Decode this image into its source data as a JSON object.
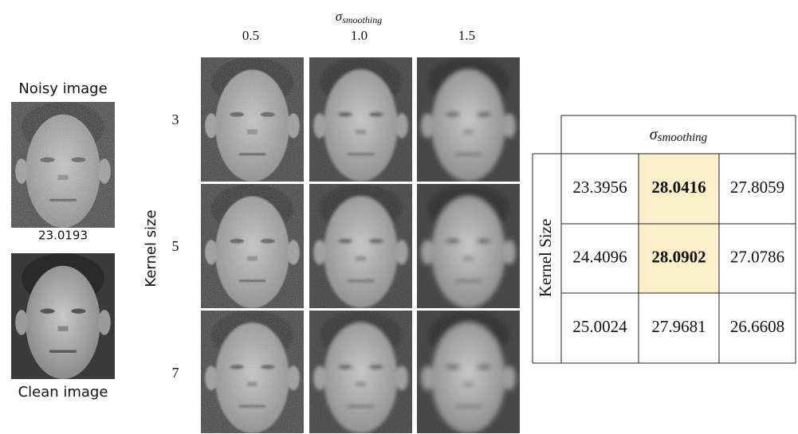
{
  "figure": {
    "noisy": {
      "label": "Noisy image",
      "psnr": "23.0193"
    },
    "clean": {
      "label": "Clean image"
    },
    "grid": {
      "col_axis": {
        "symbol": "σ",
        "subscript": "smoothing"
      },
      "columns": [
        "0.5",
        "1.0",
        "1.5"
      ],
      "row_axis": "Kernel size",
      "rows": [
        "3",
        "5",
        "7"
      ]
    }
  },
  "table": {
    "header": {
      "symbol": "σ",
      "subscript": "smoothing"
    },
    "row_axis": "Kernel Size",
    "rows": [
      [
        "23.3956",
        "28.0416",
        "27.8059"
      ],
      [
        "24.4096",
        "28.0902",
        "27.0786"
      ],
      [
        "25.0024",
        "27.9681",
        "26.6608"
      ]
    ],
    "highlighted": [
      [
        0,
        1
      ],
      [
        1,
        1
      ]
    ]
  }
}
